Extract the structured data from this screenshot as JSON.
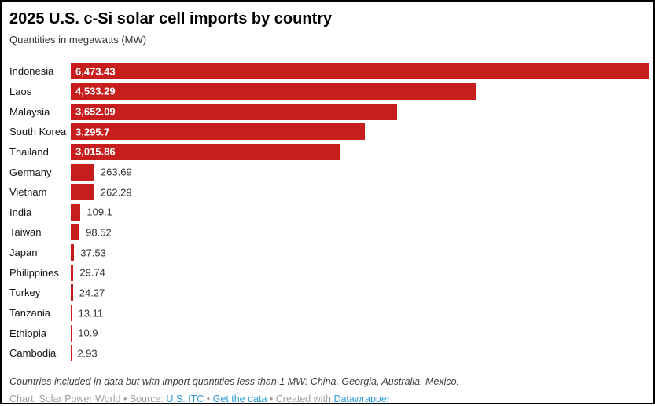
{
  "chart_data": {
    "type": "bar",
    "orientation": "horizontal",
    "title": "2025 U.S. c-Si solar cell imports by country",
    "subtitle": "Quantities in megawatts (MW)",
    "unit": "MW",
    "xlim": [
      0,
      6473.43
    ],
    "grid": false,
    "legend": false,
    "bar_color": "#c71e1d",
    "categories": [
      "Indonesia",
      "Laos",
      "Malaysia",
      "South Korea",
      "Thailand",
      "Germany",
      "Vietnam",
      "India",
      "Taiwan",
      "Japan",
      "Philippines",
      "Turkey",
      "Tanzania",
      "Ethiopia",
      "Cambodia"
    ],
    "values": [
      6473.43,
      4533.29,
      3652.09,
      3295.7,
      3015.86,
      263.69,
      262.29,
      109.1,
      98.52,
      37.53,
      29.74,
      24.27,
      13.11,
      10.9,
      2.93
    ],
    "value_labels": [
      "6,473.43",
      "4,533.29",
      "3,652.09",
      "3,295.7",
      "3,015.86",
      "263.69",
      "262.29",
      "109.1",
      "98.52",
      "37.53",
      "29.74",
      "24.27",
      "13.11",
      "10.9",
      "2.93"
    ]
  },
  "footer": {
    "note": "Countries included in data but with import quantities less than 1 MW: China, Georgia, Australia, Mexico.",
    "byline": {
      "segments": [
        {
          "text": "Chart: Solar Power World",
          "link": false
        },
        {
          "text": " • ",
          "link": false
        },
        {
          "text": "Source: ",
          "link": false
        },
        {
          "text": "U.S. ITC",
          "link": true
        },
        {
          "text": " • ",
          "link": false
        },
        {
          "text": "Get the data",
          "link": true
        },
        {
          "text": " • ",
          "link": false
        },
        {
          "text": "Created with ",
          "link": false
        },
        {
          "text": "Datawrapper",
          "link": true
        }
      ]
    }
  },
  "colors": {
    "bar": "#c71e1d",
    "link": "#2d9bd9",
    "byline_gray": "#9e9e9e"
  }
}
